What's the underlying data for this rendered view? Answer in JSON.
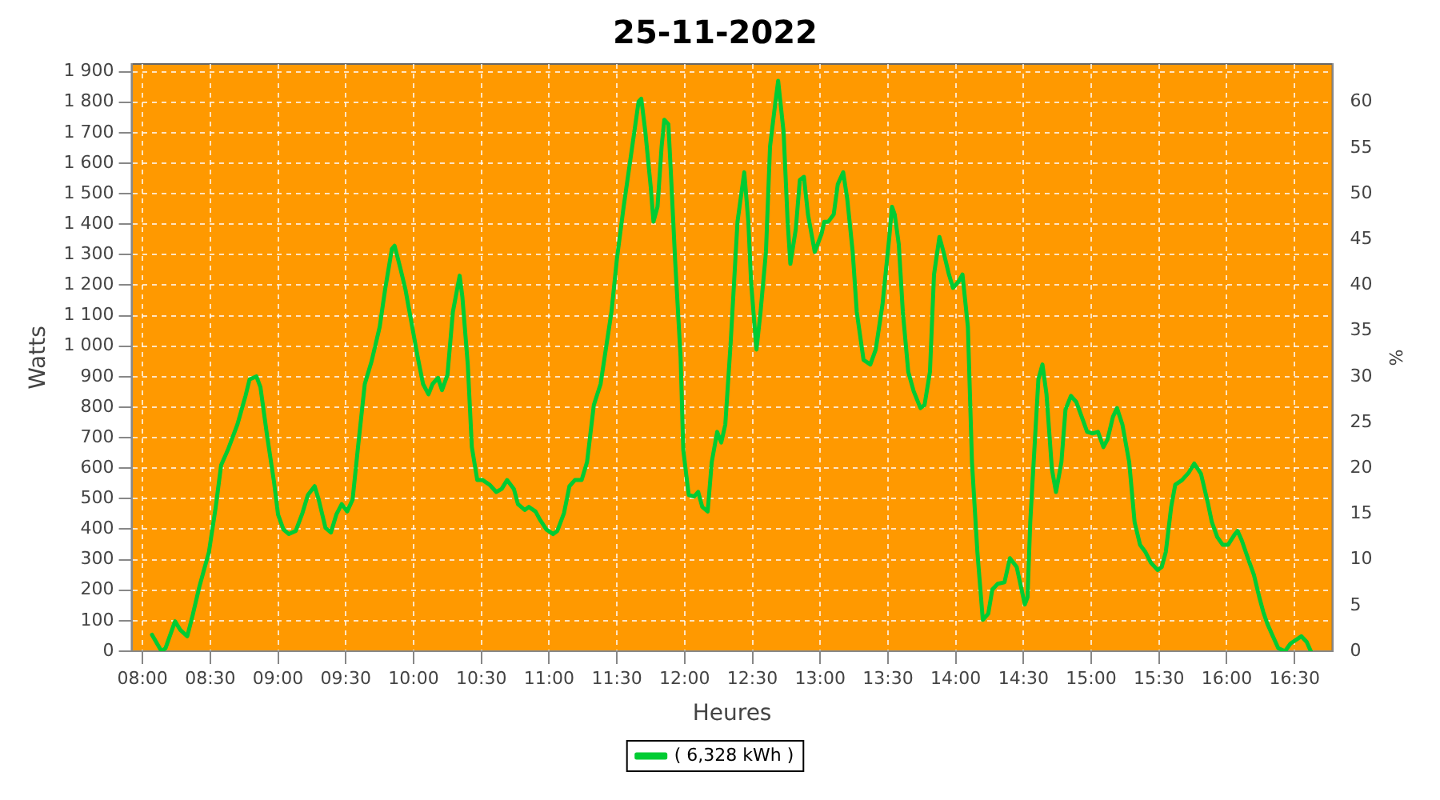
{
  "chart_data": {
    "type": "line",
    "title": "25-11-2022",
    "xlabel": "Heures",
    "ylabel": "Watts",
    "y2label": "%",
    "xlim": [
      7.92,
      16.78
    ],
    "xticks": [
      {
        "value": 8,
        "label": "08:00"
      },
      {
        "value": 8.5,
        "label": "08:30"
      },
      {
        "value": 9,
        "label": "09:00"
      },
      {
        "value": 9.5,
        "label": "09:30"
      },
      {
        "value": 10,
        "label": "10:00"
      },
      {
        "value": 10.5,
        "label": "10:30"
      },
      {
        "value": 11,
        "label": "11:00"
      },
      {
        "value": 11.5,
        "label": "11:30"
      },
      {
        "value": 12,
        "label": "12:00"
      },
      {
        "value": 12.5,
        "label": "12:30"
      },
      {
        "value": 13,
        "label": "13:00"
      },
      {
        "value": 13.5,
        "label": "13:30"
      },
      {
        "value": 14,
        "label": "14:00"
      },
      {
        "value": 14.5,
        "label": "14:30"
      },
      {
        "value": 15,
        "label": "15:00"
      },
      {
        "value": 15.5,
        "label": "15:30"
      },
      {
        "value": 16,
        "label": "16:00"
      },
      {
        "value": 16.5,
        "label": "16:30"
      }
    ],
    "ylim": [
      0,
      1925
    ],
    "yticks": [
      0,
      100,
      200,
      300,
      400,
      500,
      600,
      700,
      800,
      900,
      {
        "value": 1000,
        "label": "1 000"
      },
      {
        "value": 1100,
        "label": "1 100"
      },
      {
        "value": 1200,
        "label": "1 200"
      },
      {
        "value": 1300,
        "label": "1 300"
      },
      {
        "value": 1400,
        "label": "1 400"
      },
      {
        "value": 1500,
        "label": "1 500"
      },
      {
        "value": 1600,
        "label": "1 600"
      },
      {
        "value": 1700,
        "label": "1 700"
      },
      {
        "value": 1800,
        "label": "1 800"
      },
      {
        "value": 1900,
        "label": "1 900"
      }
    ],
    "y2lim": [
      0,
      64.17
    ],
    "y2ticks": [
      0,
      5,
      10,
      15,
      20,
      25,
      30,
      35,
      40,
      45,
      50,
      55,
      60
    ],
    "grid": true,
    "legend": "bottom",
    "marker": "none",
    "line_style": "solid",
    "series": [
      {
        "name": "( 6,328 kWh )",
        "color": "#00cc33",
        "x": [
          8.07,
          8.14,
          8.17,
          8.24,
          8.28,
          8.33,
          8.37,
          8.42,
          8.49,
          8.54,
          8.58,
          8.63,
          8.7,
          8.76,
          8.79,
          8.84,
          8.87,
          8.92,
          8.97,
          9.0,
          9.04,
          9.08,
          9.13,
          9.18,
          9.22,
          9.27,
          9.3,
          9.35,
          9.39,
          9.43,
          9.47,
          9.51,
          9.55,
          9.59,
          9.64,
          9.69,
          9.75,
          9.79,
          9.84,
          9.86,
          9.9,
          9.94,
          9.98,
          10.03,
          10.07,
          10.11,
          10.14,
          10.18,
          10.21,
          10.25,
          10.29,
          10.34,
          10.36,
          10.4,
          10.43,
          10.47,
          10.51,
          10.56,
          10.61,
          10.65,
          10.69,
          10.74,
          10.77,
          10.82,
          10.85,
          10.9,
          10.93,
          10.98,
          11.03,
          11.06,
          11.11,
          11.15,
          11.19,
          11.24,
          11.28,
          11.33,
          11.38,
          11.41,
          11.46,
          11.5,
          11.55,
          11.61,
          11.66,
          11.68,
          11.71,
          11.75,
          11.77,
          11.8,
          11.83,
          11.85,
          11.88,
          11.9,
          11.93,
          11.97,
          11.99,
          12.03,
          12.07,
          12.1,
          12.13,
          12.17,
          12.2,
          12.24,
          12.27,
          12.3,
          12.34,
          12.39,
          12.44,
          12.47,
          12.49,
          12.53,
          12.56,
          12.6,
          12.63,
          12.67,
          12.69,
          12.73,
          12.76,
          12.78,
          12.82,
          12.85,
          12.88,
          12.91,
          12.96,
          13.01,
          13.03,
          13.06,
          13.1,
          13.13,
          13.17,
          13.2,
          13.24,
          13.27,
          13.32,
          13.37,
          13.41,
          13.46,
          13.51,
          13.53,
          13.55,
          13.58,
          13.61,
          13.65,
          13.69,
          13.74,
          13.77,
          13.81,
          13.84,
          13.88,
          13.91,
          13.95,
          13.98,
          14.02,
          14.05,
          14.09,
          14.12,
          14.16,
          14.2,
          14.24,
          14.27,
          14.31,
          14.36,
          14.4,
          14.45,
          14.51,
          14.53,
          14.55,
          14.61,
          14.64,
          14.67,
          14.71,
          14.74,
          14.78,
          14.81,
          14.85,
          14.89,
          14.93,
          14.97,
          15.01,
          15.05,
          15.09,
          15.12,
          15.16,
          15.19,
          15.23,
          15.28,
          15.32,
          15.36,
          15.4,
          15.44,
          15.49,
          15.52,
          15.55,
          15.59,
          15.62,
          15.67,
          15.72,
          15.76,
          15.81,
          15.86,
          15.89,
          15.93,
          15.97,
          16.01,
          16.06,
          16.08,
          16.11,
          16.16,
          16.2,
          16.24,
          16.27,
          16.3,
          16.34,
          16.38,
          16.43,
          16.47,
          16.55,
          16.59,
          16.62
        ],
        "values": [
          54,
          0,
          10,
          98,
          69,
          49,
          118,
          212,
          325,
          472,
          610,
          660,
          743,
          837,
          891,
          901,
          866,
          704,
          556,
          448,
          399,
          384,
          394,
          453,
          512,
          541,
          497,
          404,
          389,
          448,
          482,
          458,
          497,
          669,
          876,
          950,
          1063,
          1186,
          1319,
          1329,
          1260,
          1186,
          1088,
          965,
          876,
          842,
          876,
          896,
          856,
          906,
          1112,
          1231,
          1162,
          940,
          669,
          561,
          561,
          546,
          522,
          532,
          561,
          532,
          482,
          463,
          473,
          458,
          433,
          399,
          384,
          394,
          453,
          541,
          561,
          561,
          620,
          807,
          876,
          965,
          1112,
          1285,
          1457,
          1644,
          1801,
          1811,
          1703,
          1521,
          1408,
          1457,
          1654,
          1742,
          1728,
          1555,
          1280,
          965,
          660,
          512,
          507,
          522,
          473,
          458,
          620,
          719,
          684,
          743,
          1014,
          1408,
          1570,
          1408,
          1211,
          989,
          1112,
          1309,
          1654,
          1801,
          1870,
          1703,
          1408,
          1270,
          1383,
          1545,
          1555,
          1432,
          1309,
          1368,
          1408,
          1408,
          1432,
          1531,
          1570,
          1482,
          1309,
          1112,
          955,
          940,
          989,
          1137,
          1358,
          1457,
          1432,
          1334,
          1112,
          916,
          852,
          797,
          807,
          916,
          1235,
          1358,
          1309,
          1235,
          1191,
          1211,
          1235,
          1063,
          620,
          325,
          103,
          123,
          202,
          221,
          226,
          305,
          276,
          153,
          177,
          423,
          891,
          940,
          842,
          596,
          522,
          620,
          792,
          837,
          817,
          768,
          719,
          714,
          719,
          669,
          694,
          768,
          797,
          743,
          620,
          423,
          349,
          325,
          290,
          266,
          276,
          325,
          473,
          546,
          561,
          586,
          615,
          581,
          487,
          423,
          374,
          349,
          349,
          384,
          394,
          364,
          300,
          251,
          177,
          128,
          89,
          49,
          10,
          0,
          25,
          49,
          30,
          0
        ]
      }
    ]
  }
}
